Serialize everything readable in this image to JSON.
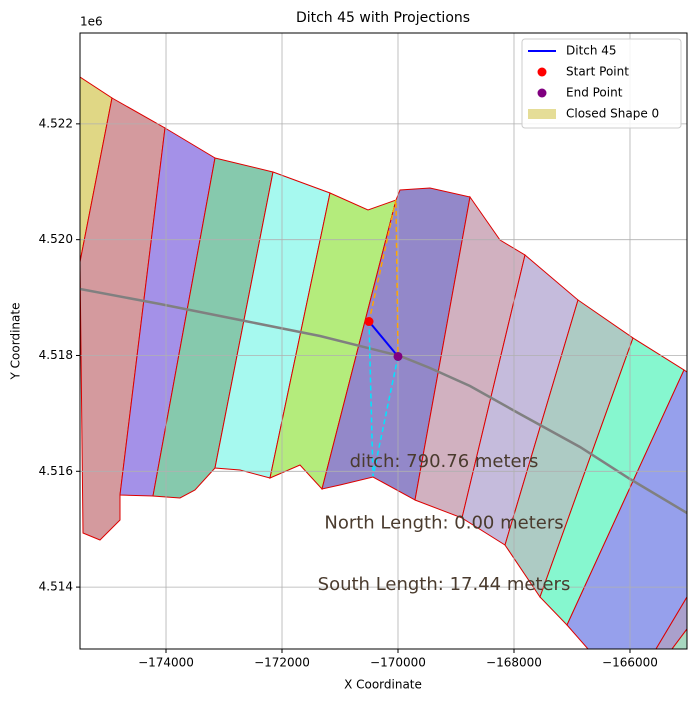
{
  "chart_data": {
    "type": "line",
    "title": "Ditch 45 with Projections",
    "x_label": "X Coordinate",
    "y_label": "Y Coordinate",
    "y_offset_label": "1e6",
    "xlim": [
      -175483,
      -165017
    ],
    "ylim": [
      4512931,
      4523569
    ],
    "xticks": [
      {
        "value": -174000,
        "label": "−174000"
      },
      {
        "value": -172000,
        "label": "−172000"
      },
      {
        "value": -170000,
        "label": "−170000"
      },
      {
        "value": -168000,
        "label": "−168000"
      },
      {
        "value": -166000,
        "label": "−166000"
      }
    ],
    "yticks": [
      {
        "value": 4514000,
        "label": "4.514"
      },
      {
        "value": 4516000,
        "label": "4.516"
      },
      {
        "value": 4518000,
        "label": "4.518"
      },
      {
        "value": 4520000,
        "label": "4.520"
      },
      {
        "value": 4522000,
        "label": "4.522"
      }
    ],
    "grid": true,
    "series": [
      {
        "name": "Ditch 45",
        "kind": "line",
        "color": "#0000ff",
        "x": [
          -170500,
          -170000
        ],
        "y": [
          4518586,
          4517983
        ]
      },
      {
        "name": "Start Point",
        "kind": "scatter",
        "color": "#ff0000",
        "x": [
          -170500
        ],
        "y": [
          4518586
        ]
      },
      {
        "name": "End Point",
        "kind": "scatter",
        "color": "#800080",
        "x": [
          -170000
        ],
        "y": [
          4517983
        ]
      }
    ],
    "projections": [
      {
        "color": "#ffa500",
        "x": [
          -170500,
          -170035,
          -170000
        ],
        "y": [
          4518586,
          4520690,
          4517983
        ]
      },
      {
        "color": "#00e5ff",
        "x": [
          -170500,
          -170431,
          -170000
        ],
        "y": [
          4518586,
          4515914,
          4517983
        ]
      }
    ],
    "closed_shape": {
      "name": "Closed Shape 0",
      "color": "#e0d785"
    },
    "annotations": [
      "ditch: 790.76 meters",
      "North Length: 0.00 meters",
      "South Length: 17.44 meters"
    ]
  }
}
